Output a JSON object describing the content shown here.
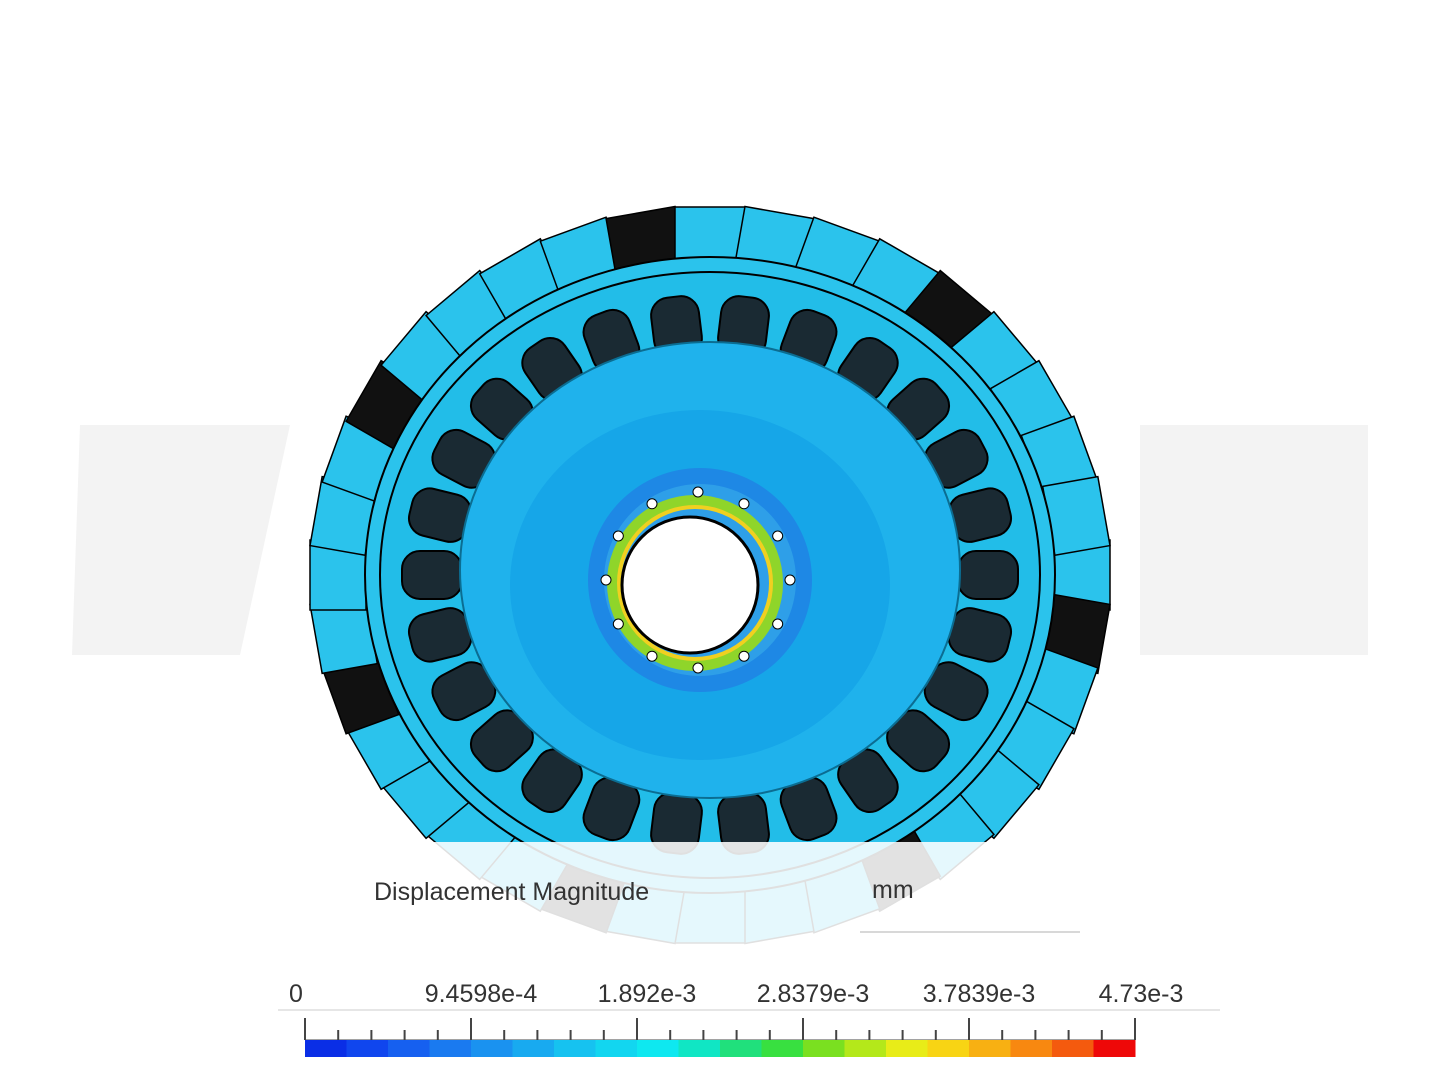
{
  "legend": {
    "title": "Displacement Magnitude",
    "unit": "mm",
    "ticks": [
      "0",
      "9.4598e-4",
      "1.892e-3",
      "2.8379e-3",
      "3.7839e-3",
      "4.73e-3"
    ]
  }
}
